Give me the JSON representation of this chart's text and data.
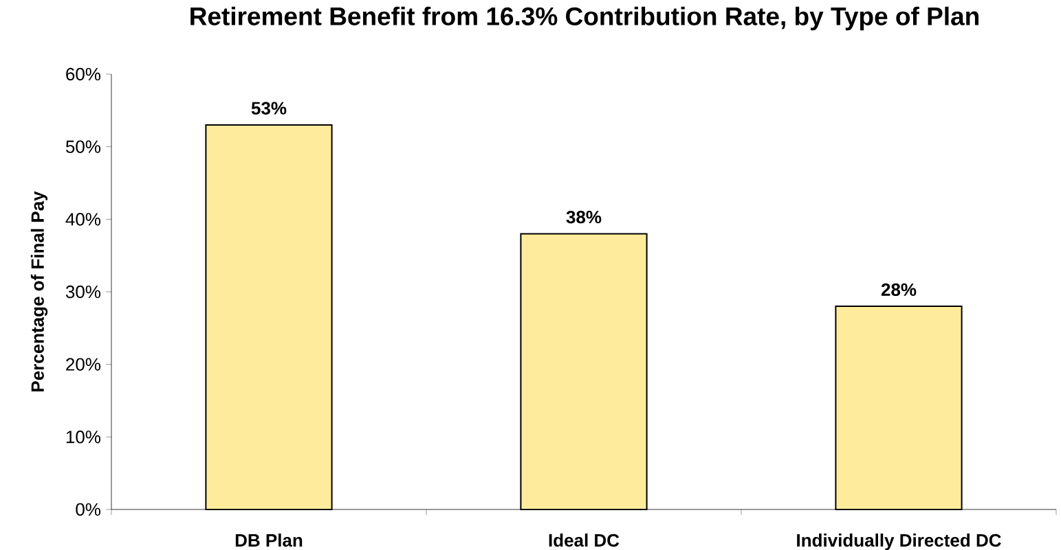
{
  "chart_data": {
    "type": "bar",
    "title": "Retirement Benefit from 16.3% Contribution Rate, by Type of Plan",
    "ylabel": "Percentage of Final Pay",
    "categories": [
      "DB Plan",
      "Ideal DC",
      "Individually Directed DC"
    ],
    "values": [
      53,
      38,
      28
    ],
    "value_labels": [
      "53%",
      "38%",
      "28%"
    ],
    "color": "#feec9c",
    "ylim": [
      0,
      60
    ],
    "yticks": [
      {
        "value": 0,
        "label": "0%"
      },
      {
        "value": 10,
        "label": "10%"
      },
      {
        "value": 20,
        "label": "20%"
      },
      {
        "value": 30,
        "label": "30%"
      },
      {
        "value": 40,
        "label": "40%"
      },
      {
        "value": 50,
        "label": "50%"
      },
      {
        "value": 60,
        "label": "60%"
      }
    ],
    "grid": false
  }
}
